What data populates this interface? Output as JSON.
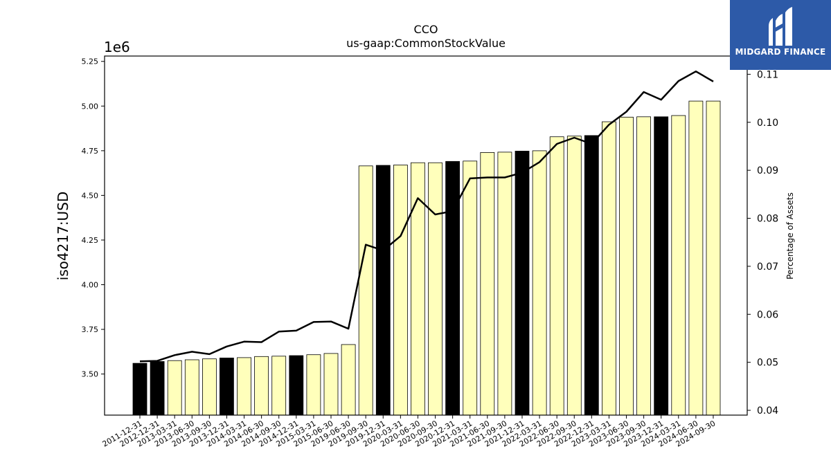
{
  "chart_data": {
    "type": "bar",
    "title": "CCO",
    "subtitle": "us-gaap:CommonStockValue",
    "ylabel": "iso4217:USD",
    "y_offset_label": "1e6",
    "y2label": "Percentage of Assets",
    "ylim": [
      3.27,
      5.28
    ],
    "y2lim": [
      0.039,
      0.1138
    ],
    "yticks": [
      "3.50",
      "3.75",
      "4.00",
      "4.25",
      "4.50",
      "4.75",
      "5.00",
      "5.25"
    ],
    "y2ticks": [
      "0.04",
      "0.05",
      "0.06",
      "0.07",
      "0.08",
      "0.09",
      "0.10",
      "0.11"
    ],
    "categories": [
      "2011-12-31",
      "2012-12-31",
      "2013-03-31",
      "2013-06-30",
      "2013-09-30",
      "2013-12-31",
      "2014-03-31",
      "2014-06-30",
      "2014-09-30",
      "2014-12-31",
      "2015-03-31",
      "2015-06-30",
      "2019-06-30",
      "2019-09-30",
      "2019-12-31",
      "2020-03-31",
      "2020-06-30",
      "2020-09-30",
      "2020-12-31",
      "2021-03-31",
      "2021-06-30",
      "2021-09-30",
      "2021-12-31",
      "2022-03-31",
      "2022-06-30",
      "2022-09-30",
      "2022-12-31",
      "2023-03-31",
      "2023-06-30",
      "2023-09-30",
      "2023-12-31",
      "2024-03-31",
      "2024-06-30",
      "2024-09-30"
    ],
    "series": [
      {
        "kind": "bar",
        "values": [
          3.56,
          3.57,
          3.575,
          3.58,
          3.585,
          3.59,
          3.592,
          3.598,
          3.6,
          3.603,
          3.608,
          3.615,
          3.665,
          4.665,
          4.668,
          4.67,
          4.683,
          4.683,
          4.69,
          4.692,
          4.74,
          4.742,
          4.748,
          4.75,
          4.828,
          4.832,
          4.835,
          4.912,
          4.938,
          4.94,
          4.94,
          4.947,
          5.028,
          5.028
        ],
        "highlight": [
          true,
          true,
          false,
          false,
          false,
          true,
          false,
          false,
          false,
          true,
          false,
          false,
          false,
          false,
          true,
          false,
          false,
          false,
          true,
          false,
          false,
          false,
          true,
          false,
          false,
          false,
          true,
          false,
          false,
          false,
          true,
          false,
          false,
          false
        ]
      },
      {
        "kind": "line",
        "axis": "right",
        "values": [
          0.0502,
          0.0503,
          0.0515,
          0.0522,
          0.0517,
          0.0533,
          0.0543,
          0.0542,
          0.0564,
          0.0566,
          0.0584,
          0.0585,
          0.057,
          0.0745,
          0.0733,
          0.0763,
          0.0842,
          0.0808,
          0.0815,
          0.0883,
          0.0885,
          0.0885,
          0.0895,
          0.0917,
          0.0955,
          0.0968,
          0.0955,
          0.0995,
          0.1022,
          0.1063,
          0.1047,
          0.1086,
          0.1106,
          0.1085
        ]
      }
    ],
    "colors": {
      "highlight": "#000000",
      "normal": "#ffffbb",
      "edge": "#000000",
      "line": "#000000"
    },
    "grid": false,
    "legend": "none"
  },
  "logo": {
    "name": "midgard-logo-icon",
    "text": "MIDGARD FINANCE"
  }
}
